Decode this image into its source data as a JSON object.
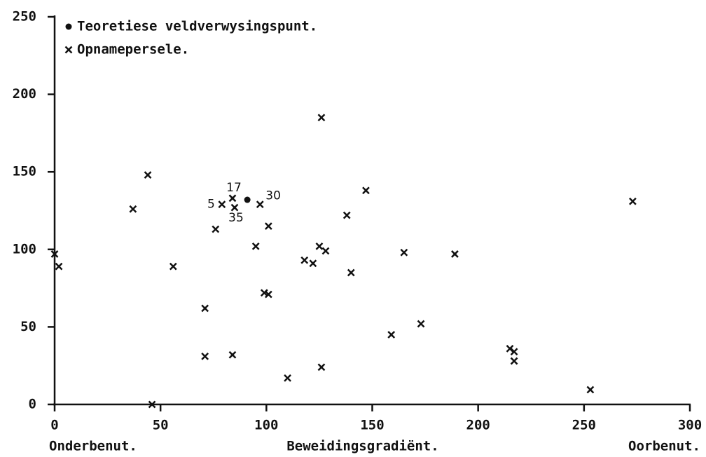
{
  "chart_data": {
    "type": "scatter",
    "xlabel_left": "Onderbenut.",
    "xlabel": "Beweidingsgradiënt.",
    "xlabel_right": "Oorbenut.",
    "xlim": [
      0,
      300
    ],
    "xticks": [
      0,
      50,
      100,
      150,
      200,
      250,
      300
    ],
    "ylim": [
      0,
      250
    ],
    "yticks": [
      0,
      50,
      100,
      150,
      200,
      250
    ],
    "legend": "top-left",
    "series": [
      {
        "name": "Teoretiese veldverwysingspunt.",
        "marker": "dot",
        "color": "#111111",
        "x": [
          91
        ],
        "values": [
          132
        ]
      },
      {
        "name": "Opnamepersele.",
        "marker": "x",
        "color": "#111111",
        "x": [
          0,
          2,
          37,
          44,
          46,
          56,
          71,
          71,
          76,
          79,
          84,
          85,
          84,
          95,
          97,
          99,
          101,
          101,
          110,
          118,
          122,
          125,
          126,
          128,
          126,
          138,
          140,
          147,
          159,
          165,
          173,
          189,
          215,
          217,
          217,
          253,
          273
        ],
        "values": [
          97,
          89,
          126,
          148,
          0,
          89,
          62,
          31,
          113,
          129,
          133,
          127,
          32,
          102,
          129,
          72,
          71,
          115,
          17,
          93,
          91,
          102,
          24,
          99,
          185,
          122,
          85,
          138,
          45,
          98,
          52,
          97,
          36,
          34,
          28,
          9.5,
          131
        ],
        "point_labels": [
          null,
          null,
          null,
          null,
          null,
          null,
          null,
          null,
          null,
          "5",
          "17",
          "35",
          null,
          null,
          "30",
          null,
          null,
          null,
          null,
          null,
          null,
          null,
          null,
          null,
          null,
          null,
          null,
          null,
          null,
          null,
          null,
          null,
          null,
          null,
          null,
          null,
          null
        ]
      }
    ]
  }
}
